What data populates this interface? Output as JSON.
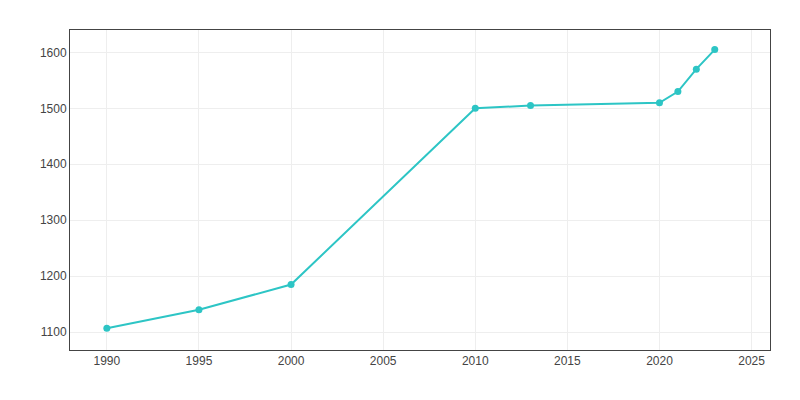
{
  "chart_data": {
    "type": "line",
    "x": [
      1990,
      1995,
      2000,
      2010,
      2013,
      2020,
      2021,
      2022,
      2023
    ],
    "values": [
      1107,
      1140,
      1185,
      1500,
      1505,
      1510,
      1530,
      1570,
      1605
    ],
    "color": "#2DC5C5",
    "marker": "circle",
    "line_style": "solid",
    "xlim": [
      1988,
      2026
    ],
    "ylim": [
      1068,
      1640
    ],
    "xticks": [
      1990,
      1995,
      2000,
      2005,
      2010,
      2015,
      2020,
      2025
    ],
    "yticks": [
      1100,
      1200,
      1300,
      1400,
      1500,
      1600
    ],
    "grid": true
  }
}
